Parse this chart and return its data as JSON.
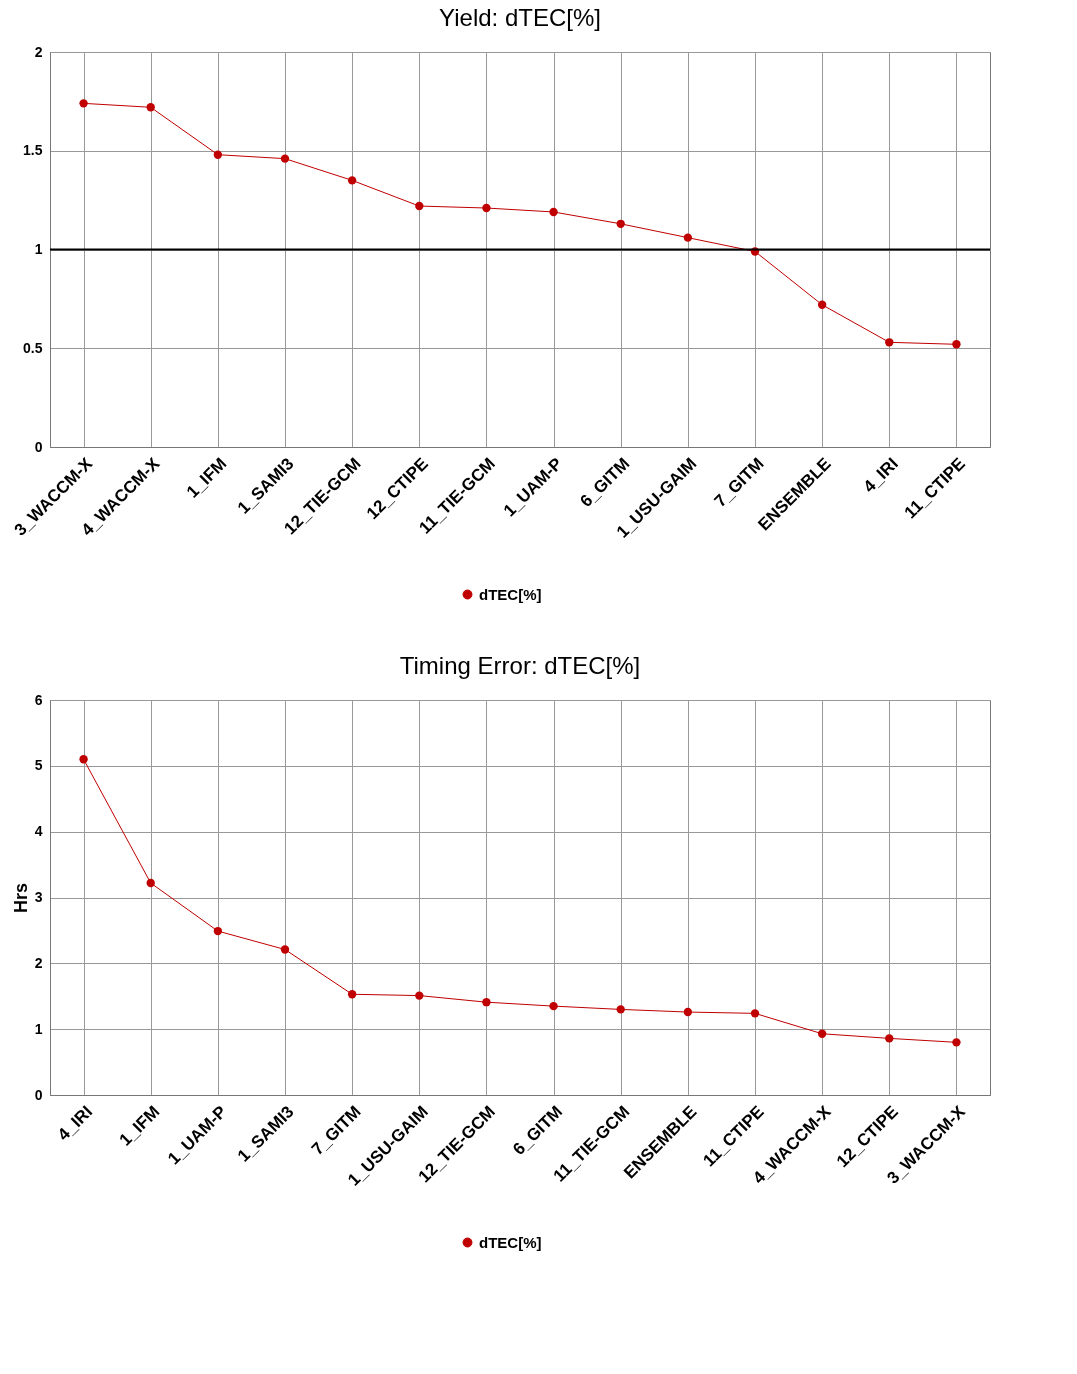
{
  "chart_data": [
    {
      "type": "line",
      "title": "Yield: dTEC[%]",
      "categories": [
        "3_WACCM-X",
        "4_WACCM-X",
        "1_IFM",
        "1_SAMI3",
        "12_TIE-GCM",
        "12_CTIPE",
        "11_TIE-GCM",
        "1_UAM-P",
        "6_GITM",
        "1_USU-GAIM",
        "7_GITM",
        "ENSEMBLE",
        "4_IRI",
        "11_CTIPE"
      ],
      "series": [
        {
          "name": "dTEC[%]",
          "color": "#c00000",
          "values": [
            1.74,
            1.72,
            1.48,
            1.46,
            1.35,
            1.22,
            1.21,
            1.19,
            1.13,
            1.06,
            0.99,
            0.72,
            0.53,
            0.52
          ]
        }
      ],
      "ylim": [
        0,
        2
      ],
      "yticks": [
        0,
        0.5,
        1,
        1.5,
        2
      ],
      "grid": true,
      "legend": "bottom",
      "marker": "circle",
      "line_style": "solid",
      "ref_lines": [
        {
          "axis": "y",
          "value": 1,
          "color": "#000000"
        }
      ]
    },
    {
      "type": "line",
      "title": "Timing Error: dTEC[%]",
      "ylabel": "Hrs",
      "categories": [
        "4_IRI",
        "1_IFM",
        "1_UAM-P",
        "1_SAMI3",
        "7_GITM",
        "1_USU-GAIM",
        "12_TIE-GCM",
        "6_GITM",
        "11_TIE-GCM",
        "ENSEMBLE",
        "11_CTIPE",
        "4_WACCM-X",
        "12_CTIPE",
        "3_WACCM-X"
      ],
      "series": [
        {
          "name": "dTEC[%]",
          "color": "#c00000",
          "values": [
            5.1,
            3.22,
            2.49,
            2.21,
            1.53,
            1.51,
            1.41,
            1.35,
            1.3,
            1.26,
            1.24,
            0.93,
            0.86,
            0.8
          ]
        }
      ],
      "ylim": [
        0,
        6
      ],
      "yticks": [
        0,
        1,
        2,
        3,
        4,
        5,
        6
      ],
      "grid": true,
      "legend": "bottom",
      "marker": "circle",
      "line_style": "solid"
    }
  ]
}
